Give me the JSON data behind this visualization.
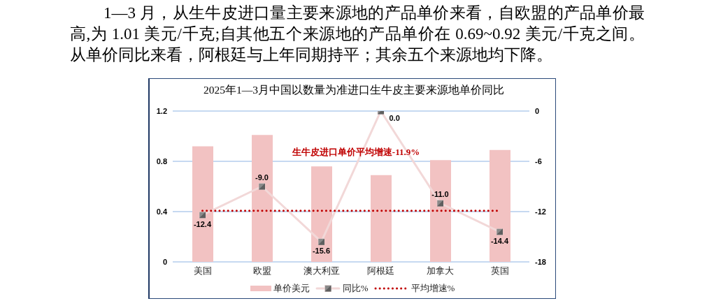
{
  "chart_data": {
    "type": "bar",
    "title": "2025年1—3月中国以数量为准进口生牛皮主要来源地单价同比",
    "annotations": [
      "1—3 月，从生牛皮进口量主要来源地的产品单价来看，自欧盟的产品单价最高,为 1.01 美元/千克;自其他五个来源地的产品单价在 0.69~0.92 美元/千克之间。从单价同比来看，阿根廷与上年同期持平；其余五个来源地均下降。",
      "生牛皮进口单价平均增速-11.9%"
    ],
    "categories": [
      "美国",
      "欧盟",
      "澳大利亚",
      "阿根廷",
      "加拿大",
      "英国"
    ],
    "series": [
      {
        "name": "单价美元",
        "color": "#f2c2c2",
        "values": [
          0.92,
          1.01,
          0.76,
          0.69,
          0.81,
          0.89
        ]
      },
      {
        "name": "同比%",
        "type": "line",
        "axis": "y2",
        "color": "#f2d8d8",
        "marker": "square",
        "values": [
          -12.4,
          -9.0,
          -15.6,
          0.0,
          -11.0,
          -14.4
        ],
        "value_labels": [
          "-12.4",
          "-9.0",
          "-15.6",
          "0.0",
          "-11.0",
          "-14.4"
        ]
      },
      {
        "name": "平均增速%",
        "type": "line",
        "axis": "y2",
        "color": "#c00000",
        "marker": "none",
        "line_style": "dotted",
        "values": [
          -11.9,
          -11.9,
          -11.9,
          -11.9,
          -11.9,
          -11.9
        ]
      }
    ],
    "ylim": [
      0,
      1.2
    ],
    "yticks": [
      0,
      0.4,
      0.8,
      1.2
    ],
    "y2lim": [
      -18,
      0
    ],
    "y2ticks": [
      -18,
      -12,
      -6,
      0
    ],
    "grid": "y",
    "legend": "bottom"
  }
}
